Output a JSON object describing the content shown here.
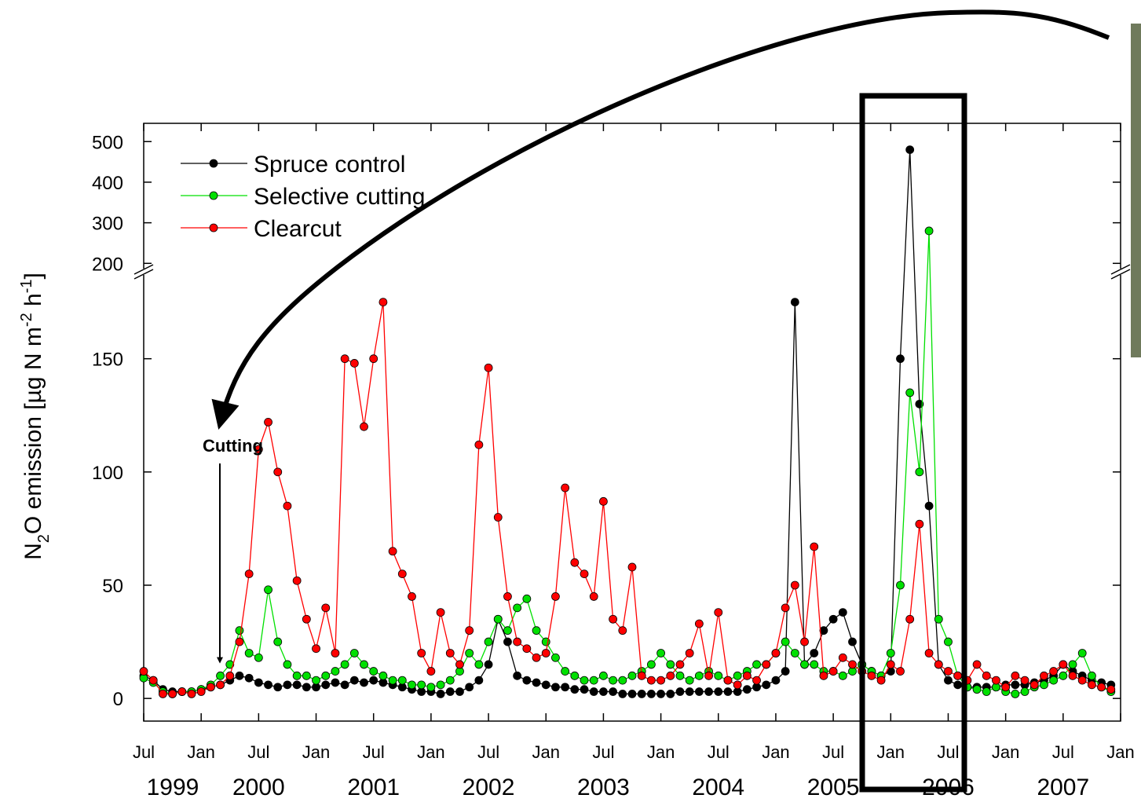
{
  "chart_data": {
    "type": "line",
    "y_label": [
      "N",
      "2",
      "O emission [µg N m",
      "-2",
      " h",
      "-1",
      "]"
    ],
    "annotation": "Cutting",
    "x": [
      "1999-07",
      "1999-08",
      "1999-09",
      "1999-10",
      "1999-11",
      "1999-12",
      "2000-01",
      "2000-02",
      "2000-03",
      "2000-04",
      "2000-05",
      "2000-06",
      "2000-07",
      "2000-08",
      "2000-09",
      "2000-10",
      "2000-11",
      "2000-12",
      "2001-01",
      "2001-02",
      "2001-03",
      "2001-04",
      "2001-05",
      "2001-06",
      "2001-07",
      "2001-08",
      "2001-09",
      "2001-10",
      "2001-11",
      "2001-12",
      "2002-01",
      "2002-02",
      "2002-03",
      "2002-04",
      "2002-05",
      "2002-06",
      "2002-07",
      "2002-08",
      "2002-09",
      "2002-10",
      "2002-11",
      "2002-12",
      "2003-01",
      "2003-02",
      "2003-03",
      "2003-04",
      "2003-05",
      "2003-06",
      "2003-07",
      "2003-08",
      "2003-09",
      "2003-10",
      "2003-11",
      "2003-12",
      "2004-01",
      "2004-02",
      "2004-03",
      "2004-04",
      "2004-05",
      "2004-06",
      "2004-07",
      "2004-08",
      "2004-09",
      "2004-10",
      "2004-11",
      "2004-12",
      "2005-01",
      "2005-02",
      "2005-03",
      "2005-04",
      "2005-05",
      "2005-06",
      "2005-07",
      "2005-08",
      "2005-09",
      "2005-10",
      "2005-11",
      "2005-12",
      "2006-01",
      "2006-02",
      "2006-03",
      "2006-04",
      "2006-05",
      "2006-06",
      "2006-07",
      "2006-08",
      "2006-09",
      "2006-10",
      "2006-11",
      "2006-12",
      "2007-01",
      "2007-02",
      "2007-03",
      "2007-04",
      "2007-05",
      "2007-06",
      "2007-07",
      "2007-08",
      "2007-09",
      "2007-10",
      "2007-11",
      "2007-12"
    ],
    "series": [
      {
        "name": "Spruce control",
        "color": "#000000",
        "values": [
          10,
          8,
          4,
          3,
          3,
          3,
          4,
          5,
          6,
          8,
          10,
          9,
          7,
          6,
          5,
          6,
          6,
          5,
          5,
          6,
          7,
          6,
          8,
          7,
          8,
          7,
          6,
          5,
          4,
          3,
          3,
          2,
          3,
          3,
          5,
          8,
          15,
          35,
          25,
          10,
          8,
          7,
          6,
          5,
          5,
          4,
          4,
          3,
          3,
          3,
          2,
          2,
          2,
          2,
          2,
          2,
          3,
          3,
          3,
          3,
          3,
          3,
          3,
          4,
          5,
          6,
          8,
          12,
          175,
          15,
          20,
          30,
          35,
          38,
          25,
          15,
          12,
          10,
          12,
          150,
          480,
          130,
          85,
          15,
          8,
          6,
          5,
          5,
          5,
          5,
          6,
          6,
          6,
          7,
          8,
          10,
          15,
          12,
          10,
          8,
          7,
          6
        ]
      },
      {
        "name": "Selective cutting",
        "color": "#00e000",
        "values": [
          9,
          7,
          3,
          2,
          3,
          3,
          4,
          6,
          10,
          15,
          30,
          20,
          18,
          48,
          25,
          15,
          10,
          10,
          8,
          10,
          12,
          15,
          20,
          15,
          12,
          10,
          8,
          8,
          6,
          6,
          5,
          6,
          8,
          12,
          20,
          15,
          25,
          35,
          30,
          40,
          44,
          30,
          25,
          18,
          12,
          10,
          8,
          8,
          10,
          8,
          8,
          10,
          12,
          15,
          20,
          15,
          10,
          8,
          10,
          12,
          10,
          8,
          10,
          12,
          15,
          15,
          20,
          25,
          20,
          15,
          15,
          12,
          12,
          10,
          12,
          15,
          12,
          10,
          20,
          50,
          135,
          100,
          280,
          35,
          25,
          10,
          5,
          4,
          3,
          5,
          3,
          2,
          3,
          5,
          6,
          8,
          10,
          15,
          20,
          10,
          5,
          3
        ]
      },
      {
        "name": "Clearcut",
        "color": "#ff0000",
        "values": [
          12,
          8,
          2,
          2,
          3,
          2,
          3,
          5,
          6,
          10,
          25,
          55,
          110,
          122,
          100,
          85,
          52,
          35,
          22,
          40,
          20,
          150,
          148,
          120,
          150,
          175,
          65,
          55,
          45,
          20,
          12,
          38,
          20,
          15,
          30,
          112,
          146,
          80,
          45,
          25,
          22,
          18,
          20,
          45,
          93,
          60,
          55,
          45,
          87,
          35,
          30,
          58,
          10,
          8,
          8,
          10,
          15,
          20,
          33,
          10,
          38,
          8,
          6,
          10,
          8,
          15,
          20,
          40,
          50,
          25,
          67,
          10,
          12,
          18,
          15,
          12,
          10,
          8,
          15,
          12,
          35,
          77,
          20,
          15,
          12,
          10,
          8,
          15,
          10,
          8,
          5,
          10,
          8,
          6,
          10,
          12,
          15,
          10,
          8,
          6,
          5,
          4
        ]
      }
    ],
    "xlim": [
      "1999-07",
      "2008-01"
    ],
    "xticks": [
      {
        "value": "1999-07",
        "label": "Jul"
      },
      {
        "value": "2000-01",
        "label": "Jan"
      },
      {
        "value": "2000-07",
        "label": "Jul"
      },
      {
        "value": "2001-01",
        "label": "Jan"
      },
      {
        "value": "2001-07",
        "label": "Jul"
      },
      {
        "value": "2002-01",
        "label": "Jan"
      },
      {
        "value": "2002-07",
        "label": "Jul"
      },
      {
        "value": "2003-01",
        "label": "Jan"
      },
      {
        "value": "2003-07",
        "label": "Jul"
      },
      {
        "value": "2004-01",
        "label": "Jan"
      },
      {
        "value": "2004-07",
        "label": "Jul"
      },
      {
        "value": "2005-01",
        "label": "Jan"
      },
      {
        "value": "2005-07",
        "label": "Jul"
      },
      {
        "value": "2006-01",
        "label": "Jan"
      },
      {
        "value": "2006-07",
        "label": "Jul"
      },
      {
        "value": "2007-01",
        "label": "Jan"
      },
      {
        "value": "2007-07",
        "label": "Jul"
      },
      {
        "value": "2008-01",
        "label": "Jan"
      }
    ],
    "year_labels": [
      "1999",
      "2000",
      "2001",
      "2002",
      "2003",
      "2004",
      "2005",
      "2006",
      "2007"
    ],
    "ylim": [
      -10,
      545
    ],
    "ybreak": 187,
    "yticks": [
      0,
      50,
      100,
      150,
      200,
      300,
      400,
      500
    ],
    "legend": "upper left"
  }
}
